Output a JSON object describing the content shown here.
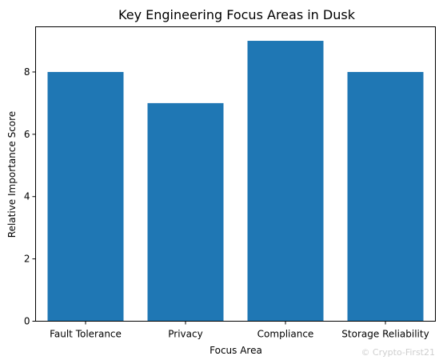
{
  "chart_data": {
    "type": "bar",
    "title": "Key Engineering Focus Areas in Dusk",
    "xlabel": "Focus Area",
    "ylabel": "Relative Importance Score",
    "categories": [
      "Fault Tolerance",
      "Privacy",
      "Compliance",
      "Storage Reliability"
    ],
    "values": [
      8,
      7,
      9,
      8
    ],
    "ylim": [
      0,
      9.45
    ],
    "yticks": [
      0,
      2,
      4,
      6,
      8
    ],
    "bar_color": "#1f77b4",
    "grid": false
  },
  "watermark": "© Crypto-First21"
}
